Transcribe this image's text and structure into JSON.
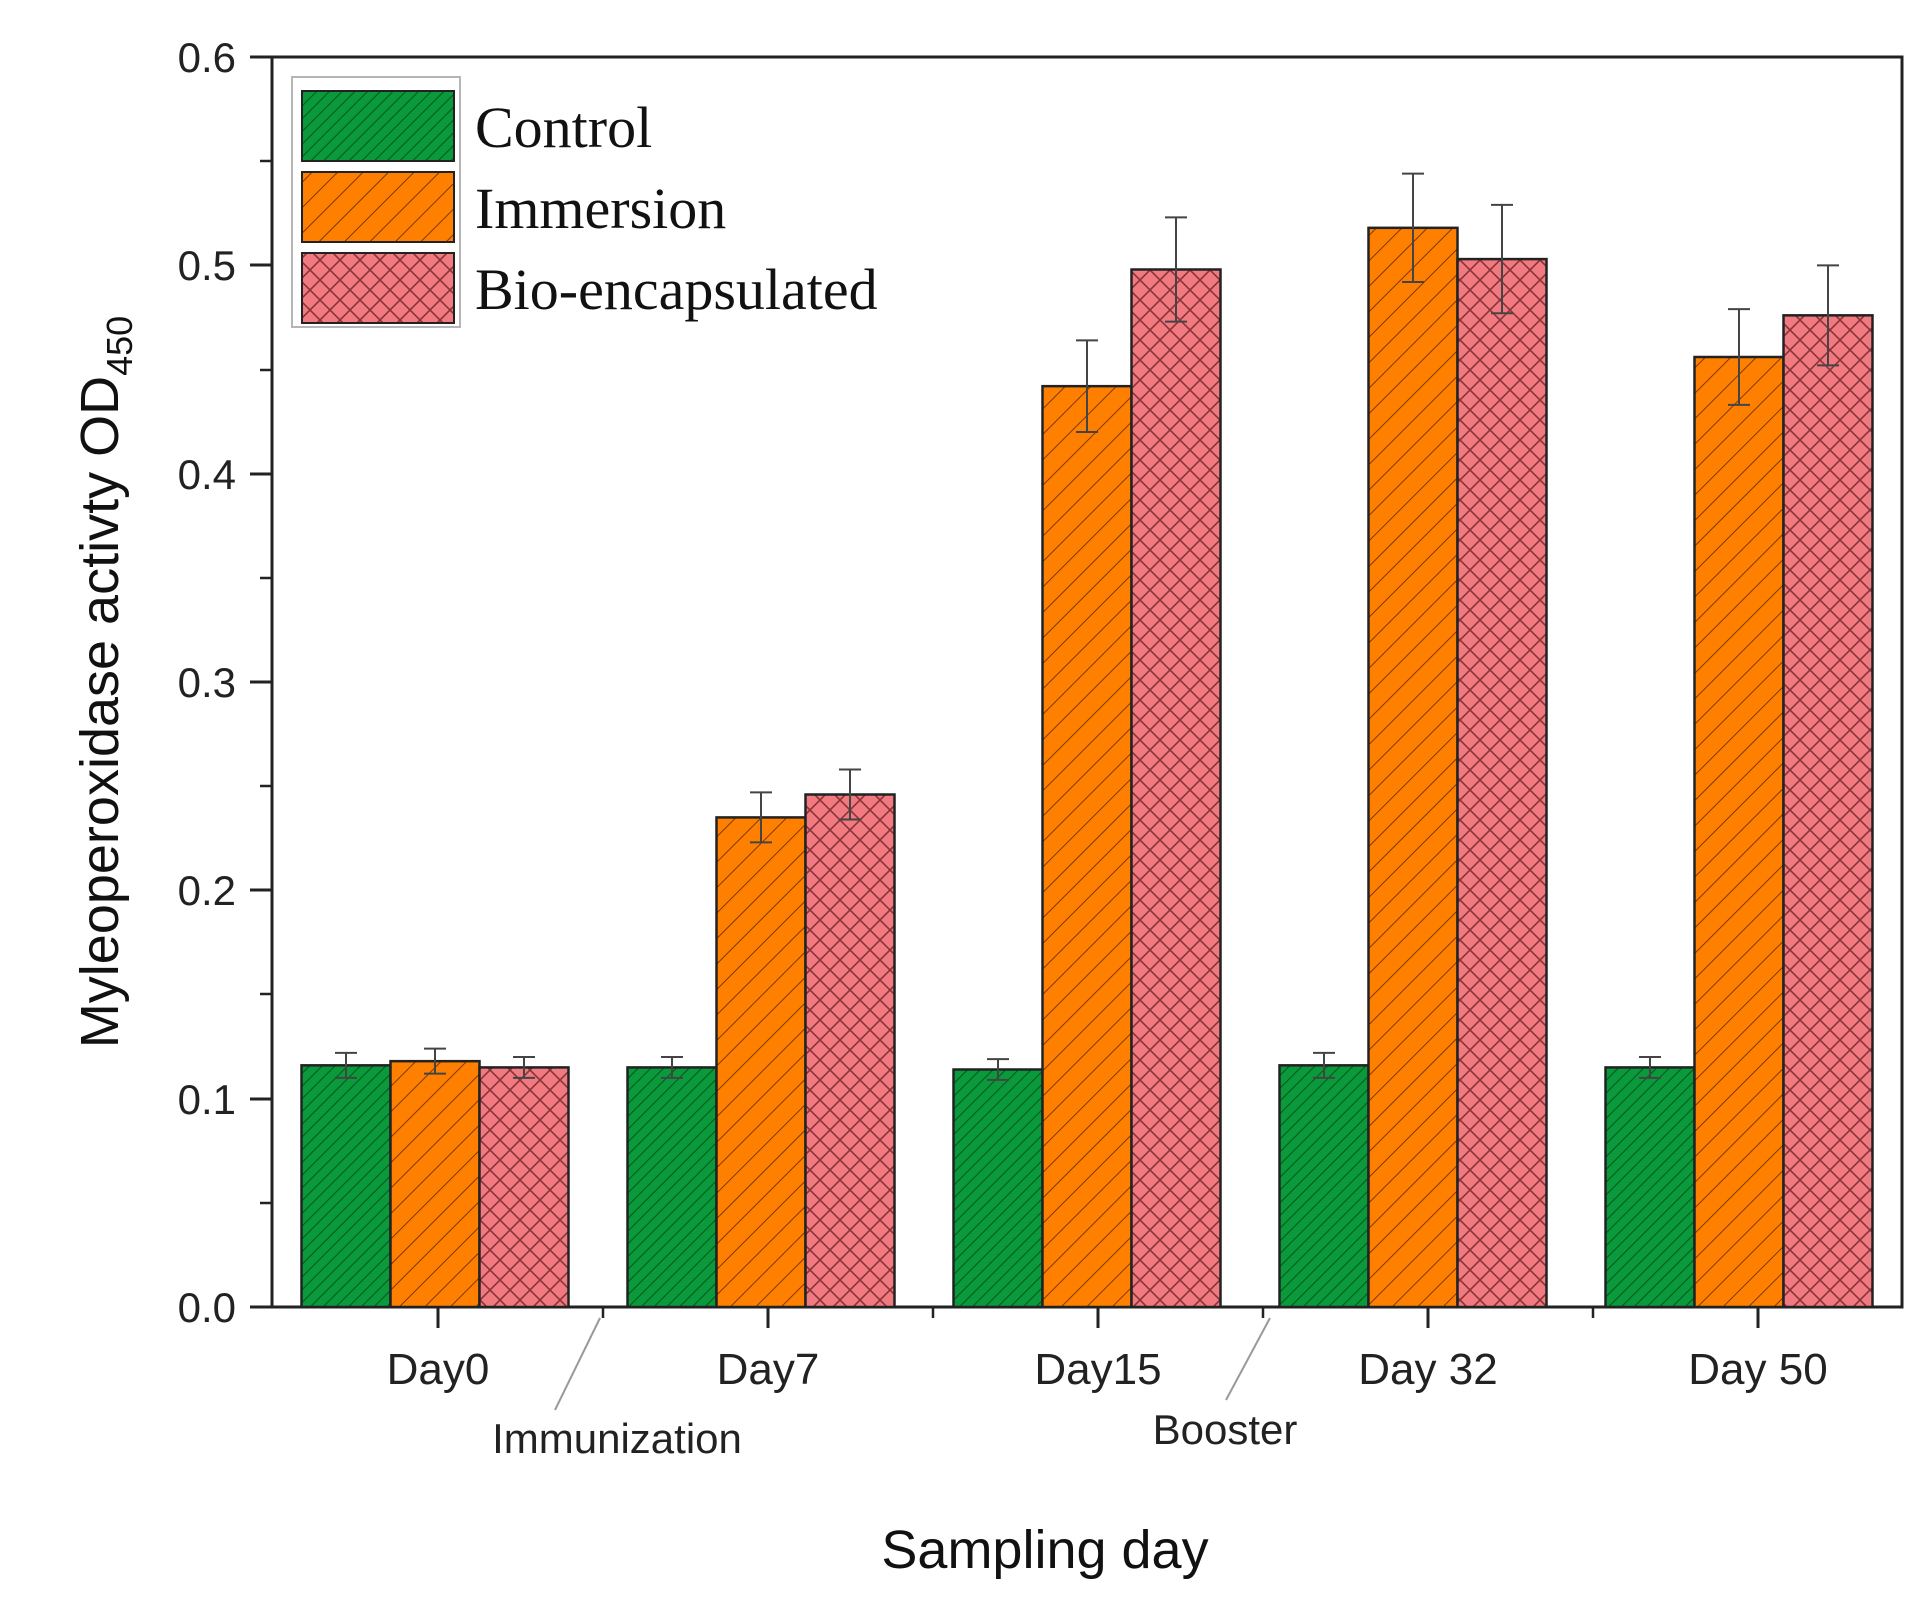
{
  "chart_data": {
    "type": "bar",
    "title": "",
    "xlabel": "Sampling day",
    "ylabel": "Myleoperoxidase activty OD",
    "ylabel_subscript": "450",
    "ylim": [
      0.0,
      0.6
    ],
    "yticks": [
      "0.0",
      "0.1",
      "0.2",
      "0.3",
      "0.4",
      "0.5",
      "0.6"
    ],
    "categories": [
      "Day0",
      "Day7",
      "Day15",
      "Day 32",
      "Day 50"
    ],
    "series": [
      {
        "name": "Control",
        "color": "#0a9a3c",
        "pattern": "diagonal-hatch-dense",
        "values": [
          0.116,
          0.115,
          0.114,
          0.116,
          0.115
        ],
        "errors": [
          0.006,
          0.005,
          0.005,
          0.006,
          0.005
        ]
      },
      {
        "name": "Immersion",
        "color": "#ff8000",
        "pattern": "diagonal-hatch",
        "values": [
          0.118,
          0.235,
          0.442,
          0.518,
          0.456
        ],
        "errors": [
          0.006,
          0.012,
          0.022,
          0.026,
          0.023
        ]
      },
      {
        "name": "Bio-encapsulated",
        "color": "#f07a80",
        "pattern": "crosshatch",
        "values": [
          0.115,
          0.246,
          0.498,
          0.503,
          0.476
        ],
        "errors": [
          0.005,
          0.012,
          0.025,
          0.026,
          0.024
        ]
      }
    ],
    "legend_position": "top-left",
    "annotations": [
      {
        "text": "Immunization",
        "between": [
          "Day0",
          "Day7"
        ]
      },
      {
        "text": "Booster",
        "between": [
          "Day15",
          "Day 32"
        ]
      }
    ]
  }
}
